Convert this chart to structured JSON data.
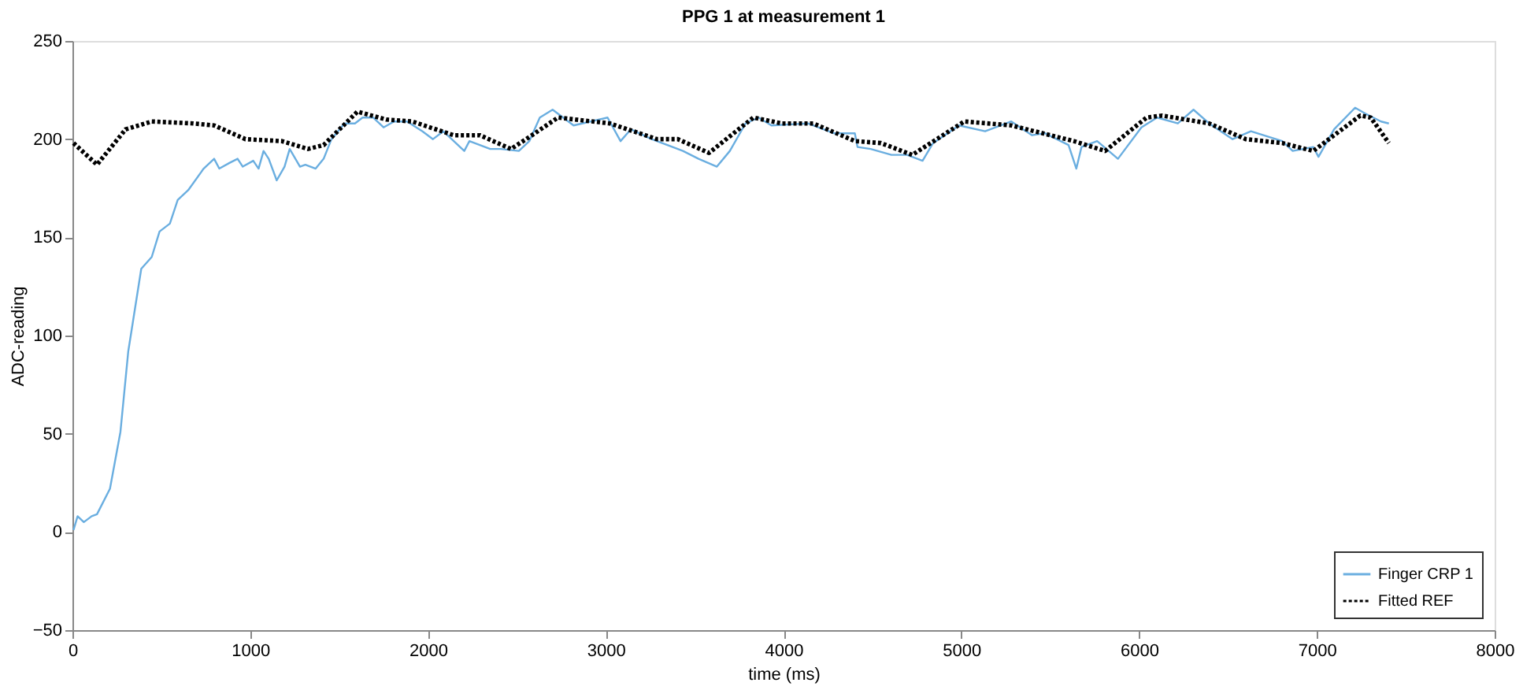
{
  "chart_data": {
    "type": "line",
    "title": "PPG 1 at measurement 1",
    "xlabel": "time (ms)",
    "ylabel": "ADC-reading",
    "xlim": [
      0,
      8000
    ],
    "ylim": [
      -50,
      250
    ],
    "xticks": [
      0,
      1000,
      2000,
      3000,
      4000,
      5000,
      6000,
      7000,
      8000
    ],
    "yticks": [
      -50,
      0,
      50,
      100,
      150,
      200,
      250
    ],
    "grid": false,
    "legend": "bottom right",
    "series": [
      {
        "name": "Finger CRP 1",
        "color": "#6aaee0",
        "line_style": "solid",
        "x": [
          6,
          29,
          64,
          108,
          138,
          211,
          270,
          314,
          387,
          446,
          490,
          548,
          592,
          651,
          738,
          797,
          826,
          885,
          929,
          958,
          1017,
          1047,
          1075,
          1104,
          1149,
          1193,
          1222,
          1280,
          1310,
          1368,
          1413,
          1457,
          1530,
          1589,
          1632,
          1691,
          1750,
          1809,
          1882,
          1969,
          2028,
          2086,
          2204,
          2233,
          2350,
          2409,
          2511,
          2570,
          2629,
          2701,
          2760,
          2819,
          3010,
          3083,
          3141,
          3258,
          3376,
          3434,
          3522,
          3625,
          3698,
          3786,
          3859,
          3932,
          4137,
          4284,
          4401,
          4416,
          4490,
          4607,
          4695,
          4782,
          4841,
          4987,
          5134,
          5281,
          5398,
          5470,
          5603,
          5647,
          5676,
          5764,
          5881,
          6013,
          6101,
          6218,
          6306,
          6394,
          6526,
          6629,
          6805,
          6864,
          6980,
          7009,
          7097,
          7215,
          7273,
          7361,
          7405
        ],
        "values": [
          1,
          8,
          5,
          8,
          9,
          22,
          51,
          92,
          134,
          140,
          153,
          157,
          169,
          174,
          185,
          190,
          185,
          188,
          190,
          186,
          189,
          185,
          194,
          190,
          179,
          186,
          195,
          186,
          187,
          185,
          190,
          200,
          208,
          208,
          211,
          211,
          206,
          209,
          209,
          204,
          200,
          204,
          194,
          199,
          195,
          195,
          194,
          199,
          211,
          215,
          211,
          207,
          211,
          199,
          205,
          200,
          196,
          194,
          190,
          186,
          194,
          208,
          211,
          207,
          208,
          203,
          203,
          196,
          195,
          192,
          192,
          189,
          198,
          207,
          204,
          209,
          202,
          203,
          197,
          185,
          196,
          199,
          190,
          206,
          211,
          208,
          215,
          208,
          200,
          204,
          199,
          194,
          196,
          191,
          205,
          216,
          213,
          209,
          208
        ]
      },
      {
        "name": "Fitted REF",
        "color": "#000000",
        "line_style": "dotted",
        "x": [
          6,
          138,
          299,
          446,
          680,
          797,
          973,
          1178,
          1325,
          1413,
          1603,
          1765,
          1911,
          2145,
          2292,
          2467,
          2585,
          2731,
          3024,
          3288,
          3405,
          3581,
          3830,
          3991,
          4167,
          4402,
          4548,
          4724,
          5017,
          5281,
          5633,
          5809,
          6042,
          6130,
          6394,
          6600,
          6805,
          6980,
          7244,
          7303,
          7405
        ],
        "values": [
          198,
          187,
          205,
          209,
          208,
          207,
          200,
          199,
          195,
          197,
          214,
          210,
          209,
          202,
          202,
          195,
          202,
          211,
          208,
          200,
          200,
          193,
          211,
          208,
          208,
          199,
          198,
          192,
          209,
          207,
          199,
          194,
          211,
          212,
          208,
          200,
          198,
          194,
          212,
          211,
          198
        ]
      }
    ]
  }
}
